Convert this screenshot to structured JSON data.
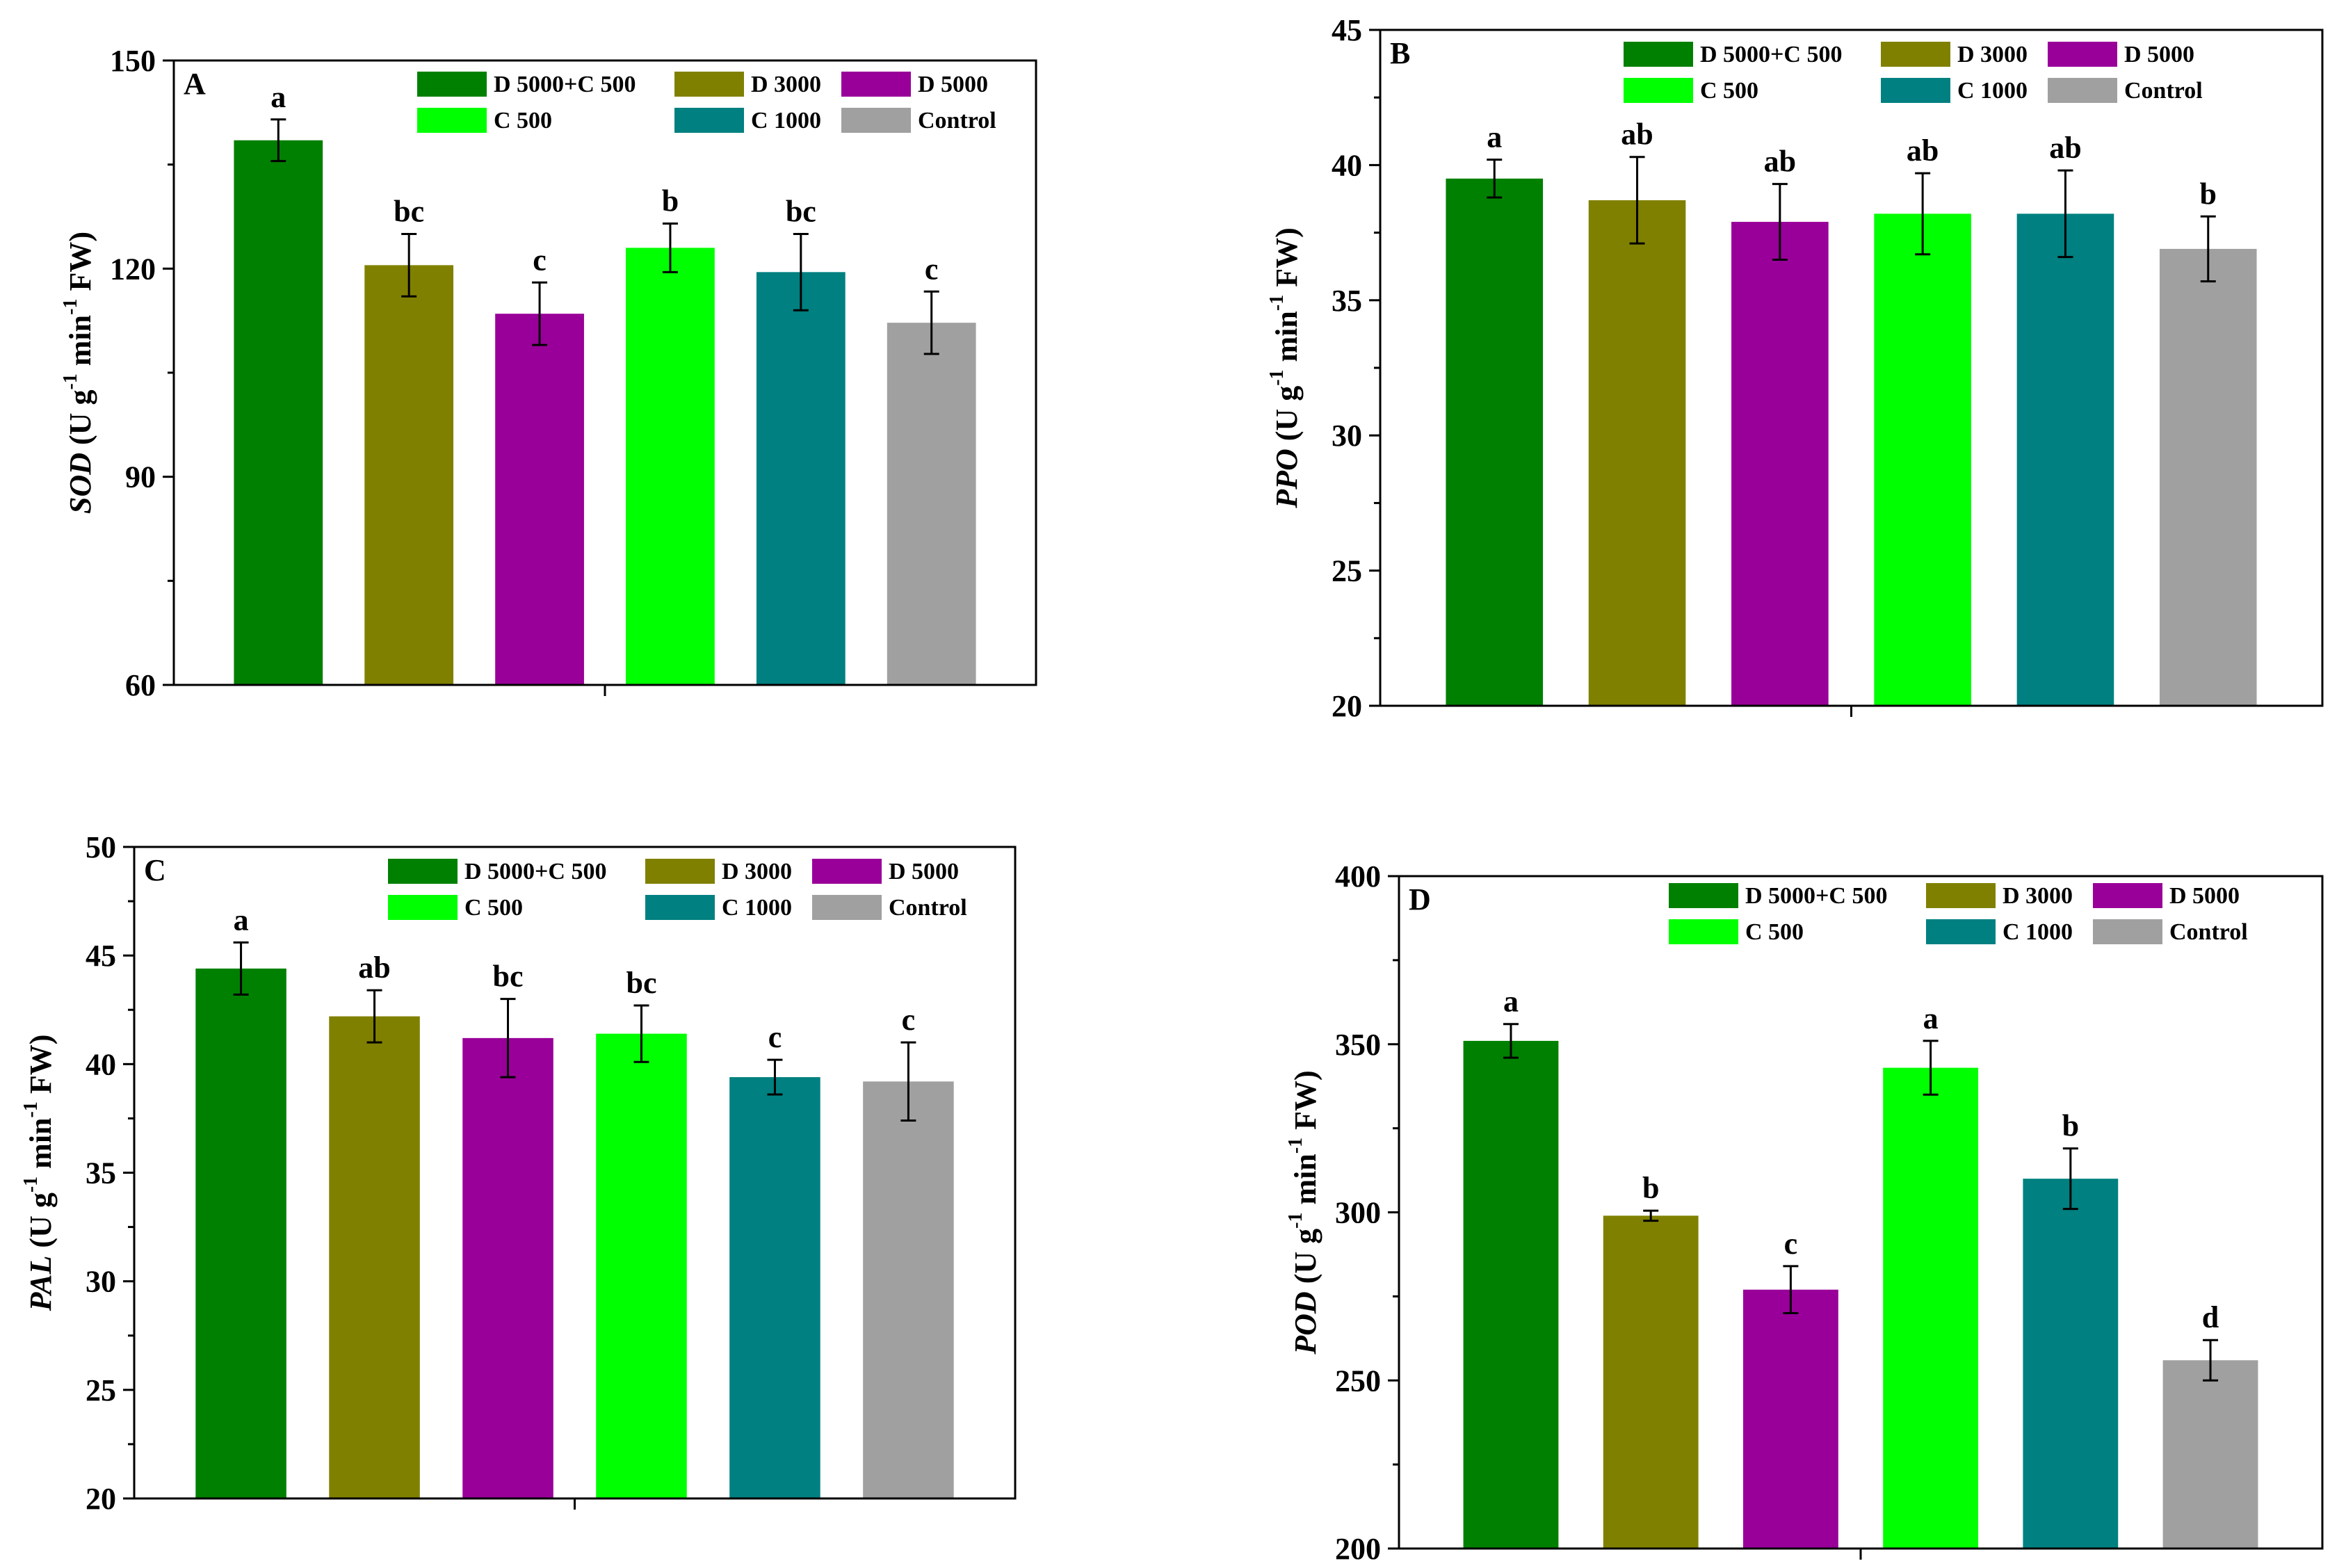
{
  "figure_title": "",
  "legend_labels": [
    "D 5000+C 500",
    "D 3000",
    "D 5000",
    "C 500",
    "C 1000",
    "Control"
  ],
  "colors": [
    "#008000",
    "#808000",
    "#990099",
    "#00FF00",
    "#008080",
    "#A0A0A0"
  ],
  "chart_data": [
    {
      "type": "bar",
      "panel_letter": "A",
      "ylabel": {
        "metric": "SOD",
        "unit_prefix": "(U g",
        "unit_exp1": "-1",
        "unit_mid": " min",
        "unit_exp2": "-1",
        "unit_suffix": " FW)"
      },
      "ylim": [
        60,
        150
      ],
      "ticks": [
        60,
        90,
        120,
        150
      ],
      "ticks_minor": [
        75,
        105,
        135
      ],
      "legend_position": "top-right",
      "categories": [
        "D 5000+C 500",
        "D 3000",
        "D 5000",
        "C 500",
        "C 1000",
        "Control"
      ],
      "values": [
        138.5,
        120.5,
        113.5,
        123.0,
        119.5,
        112.2
      ],
      "errors": [
        3.0,
        4.5,
        4.5,
        3.5,
        5.5,
        4.5
      ],
      "letters": [
        "a",
        "bc",
        "c",
        "b",
        "bc",
        "c"
      ]
    },
    {
      "type": "bar",
      "panel_letter": "B",
      "ylabel": {
        "metric": "PPO",
        "unit_prefix": "(U g",
        "unit_exp1": "-1",
        "unit_mid": " min",
        "unit_exp2": "-1",
        "unit_suffix": " FW)"
      },
      "ylim": [
        20,
        45
      ],
      "ticks": [
        20,
        25,
        30,
        35,
        40,
        45
      ],
      "ticks_minor": [
        22.5,
        27.5,
        32.5,
        37.5,
        42.5
      ],
      "legend_position": "top-right",
      "categories": [
        "D 5000+C 500",
        "D 3000",
        "D 5000",
        "C 500",
        "C 1000",
        "Control"
      ],
      "values": [
        39.5,
        38.7,
        37.9,
        38.2,
        38.2,
        36.9
      ],
      "errors": [
        0.7,
        1.6,
        1.4,
        1.5,
        1.6,
        1.2
      ],
      "letters": [
        "a",
        "ab",
        "ab",
        "ab",
        "ab",
        "b"
      ]
    },
    {
      "type": "bar",
      "panel_letter": "C",
      "ylabel": {
        "metric": "PAL",
        "unit_prefix": "(U g",
        "unit_exp1": "-1",
        "unit_mid": " min",
        "unit_exp2": "-1",
        "unit_suffix": " FW)"
      },
      "ylim": [
        20,
        50
      ],
      "ticks": [
        20,
        25,
        30,
        35,
        40,
        45,
        50
      ],
      "ticks_minor": [
        22.5,
        27.5,
        32.5,
        37.5,
        42.5,
        47.5
      ],
      "legend_position": "top-right",
      "categories": [
        "D 5000+C 500",
        "D 3000",
        "D 5000",
        "C 500",
        "C 1000",
        "Control"
      ],
      "values": [
        44.4,
        42.2,
        41.2,
        41.4,
        39.4,
        39.2
      ],
      "errors": [
        1.2,
        1.2,
        1.8,
        1.3,
        0.8,
        1.8
      ],
      "letters": [
        "a",
        "ab",
        "bc",
        "bc",
        "c",
        "c"
      ]
    },
    {
      "type": "bar",
      "panel_letter": "D",
      "ylabel": {
        "metric": "POD",
        "unit_prefix": "(U g",
        "unit_exp1": "-1",
        "unit_mid": " min",
        "unit_exp2": "-1",
        "unit_suffix": " FW)"
      },
      "ylim": [
        200,
        400
      ],
      "ticks": [
        200,
        250,
        300,
        350,
        400
      ],
      "ticks_minor": [
        225,
        275,
        325,
        375
      ],
      "legend_position": "top-right",
      "categories": [
        "D 5000+C 500",
        "D 3000",
        "D 5000",
        "C 500",
        "C 1000",
        "Control"
      ],
      "values": [
        351,
        299,
        277,
        343,
        310,
        256
      ],
      "errors": [
        5,
        1.5,
        7,
        8,
        9,
        6
      ],
      "letters": [
        "a",
        "b",
        "c",
        "a",
        "b",
        "d"
      ]
    }
  ]
}
